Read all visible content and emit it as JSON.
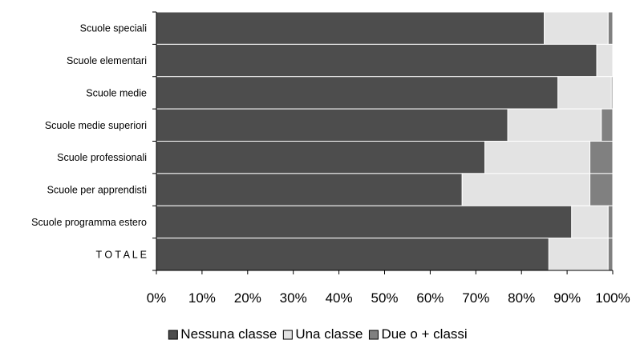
{
  "chart_data": {
    "type": "bar",
    "orientation": "horizontal",
    "stacked": true,
    "percent_stacked": true,
    "categories": [
      "Scuole speciali",
      "Scuole elementari",
      "Scuole medie",
      "Scuole medie superiori",
      "Scuole professionali",
      "Scuole per apprendisti",
      "Scuole programma estero",
      "T O T A L E"
    ],
    "series": [
      {
        "name": "Nessuna classe",
        "color": "#4d4d4d",
        "values": [
          85,
          96.5,
          88,
          77,
          72,
          67,
          91,
          86
        ]
      },
      {
        "name": "Una classe",
        "color": "#e3e3e3",
        "values": [
          14,
          3.5,
          11.7,
          20.5,
          23,
          28,
          8,
          13
        ]
      },
      {
        "name": "Due o + classi",
        "color": "#808080",
        "values": [
          1,
          0,
          0.3,
          2.5,
          5,
          5,
          1,
          1
        ]
      }
    ],
    "xlim": [
      0,
      100
    ],
    "xticks": [
      "0%",
      "10%",
      "20%",
      "30%",
      "40%",
      "50%",
      "60%",
      "70%",
      "80%",
      "90%",
      "100%"
    ],
    "xlabel": "",
    "ylabel": "",
    "title": "",
    "grid": false,
    "legend_position": "bottom"
  }
}
